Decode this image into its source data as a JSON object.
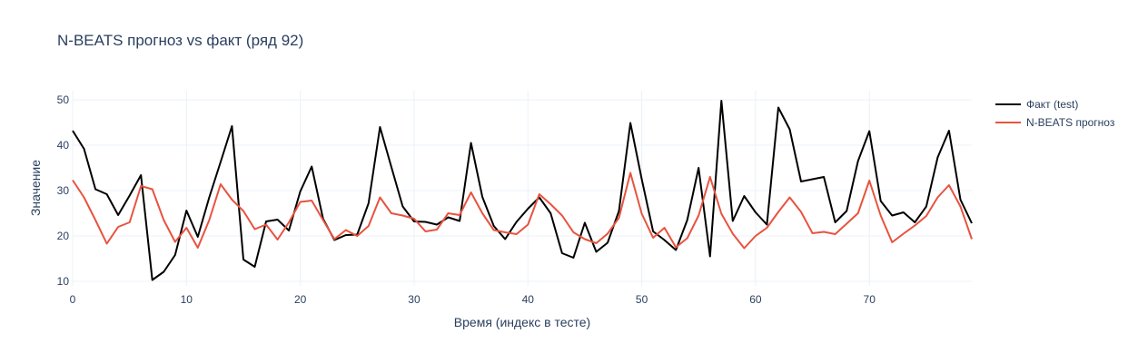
{
  "chart_data": {
    "type": "line",
    "title": "N-BEATS прогноз vs факт (ряд 92)",
    "xlabel": "Время (индекс в тесте)",
    "ylabel": "Значение",
    "xlim": [
      0,
      79
    ],
    "ylim": [
      9,
      52
    ],
    "x_ticks": [
      0,
      10,
      20,
      30,
      40,
      50,
      60,
      70
    ],
    "y_ticks": [
      10,
      20,
      30,
      40,
      50
    ],
    "grid": true,
    "legend_position": "top-right",
    "series": [
      {
        "name": "Факт (test)",
        "color": "#000000",
        "values": [
          43.2,
          39.2,
          30.3,
          29.2,
          24.6,
          28.9,
          33.4,
          10.3,
          12.1,
          15.8,
          25.6,
          19.8,
          28.5,
          36.3,
          44.2,
          14.8,
          13.2,
          23.2,
          23.6,
          21.2,
          29.8,
          35.3,
          23.8,
          19.1,
          20.2,
          20.3,
          27.2,
          44.0,
          35.2,
          26.5,
          23.2,
          23.1,
          22.5,
          24.1,
          23.3,
          40.5,
          28.6,
          22.2,
          19.3,
          23.1,
          26.0,
          28.5,
          25.0,
          16.2,
          15.2,
          22.9,
          16.5,
          18.5,
          25.5,
          44.9,
          32.5,
          21.0,
          19.1,
          16.9,
          23.5,
          35.0,
          15.5,
          49.8,
          23.3,
          28.8,
          25.2,
          22.5,
          48.3,
          43.5,
          32.0,
          32.5,
          33.0,
          23.0,
          25.5,
          36.5,
          43.1,
          27.7,
          24.5,
          25.2,
          23.0,
          26.5,
          37.3,
          43.2,
          28.0,
          22.8
        ]
      },
      {
        "name": "N-BEATS прогноз",
        "color": "#e8533f",
        "values": [
          32.3,
          28.5,
          23.5,
          18.3,
          22.0,
          23.0,
          31.0,
          30.3,
          23.5,
          18.7,
          21.8,
          17.4,
          23.5,
          31.4,
          28.0,
          25.5,
          21.5,
          22.5,
          19.2,
          23.0,
          27.5,
          27.8,
          23.5,
          19.3,
          21.3,
          20.0,
          22.2,
          28.5,
          25.0,
          24.5,
          23.8,
          21.0,
          21.4,
          25.0,
          24.6,
          29.6,
          25.0,
          21.3,
          20.8,
          20.4,
          22.5,
          29.2,
          27.0,
          24.5,
          20.8,
          19.3,
          18.4,
          20.5,
          24.0,
          33.9,
          24.9,
          19.6,
          21.8,
          17.5,
          19.5,
          24.5,
          33.0,
          24.9,
          20.5,
          17.3,
          20.0,
          21.8,
          25.3,
          28.5,
          25.3,
          20.6,
          20.9,
          20.4,
          22.7,
          25.0,
          32.2,
          24.5,
          18.6,
          20.5,
          22.3,
          24.4,
          28.5,
          31.2,
          26.5,
          19.3
        ]
      }
    ]
  }
}
